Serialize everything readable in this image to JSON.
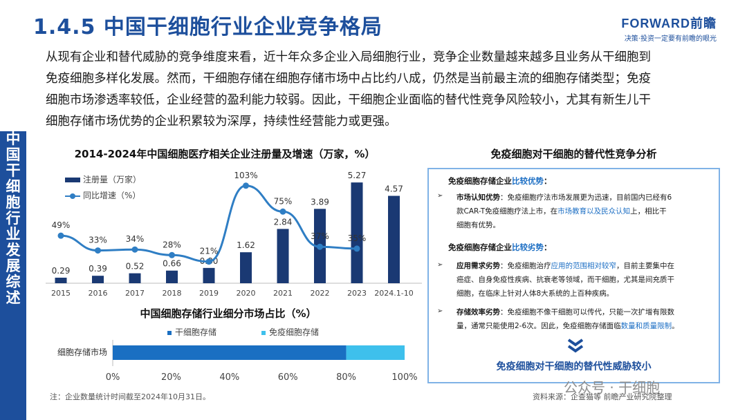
{
  "header": {
    "title": "1.4.5 中国干细胞行业企业竞争格局",
    "logo_main": "FORWARD前瞻",
    "logo_sub": "决策·投资一定要有前瞻的眼光"
  },
  "sidebar": {
    "chars": [
      "中",
      "国",
      "干",
      "细",
      "胞",
      "行",
      "业",
      "发",
      "展",
      "综",
      "述"
    ]
  },
  "intro": {
    "lines": [
      "从现有企业和替代威胁的竞争维度来看，近十年众多企业入局细胞行业，竞争企业数量越来越多且业务从干细胞到",
      "免疫细胞多样化发展。然而，干细胞存储在细胞存储市场中占比约八成，仍然是当前最主流的细胞存储类型；免疫",
      "细胞市场渗透率较低，企业经营的盈利能力较弱。因此，干细胞企业面临的替代性竞争风险较小，尤其有新生儿干",
      "细胞存储市场优势的企业积累较为深厚，持续性经营能力或更强。"
    ]
  },
  "chart_data": [
    {
      "type": "bar",
      "title": "2014-2024年中国细胞医疗相关企业注册量及增速（万家，%）",
      "categories": [
        "2015",
        "2016",
        "2017",
        "2018",
        "2019",
        "2020",
        "2021",
        "2022",
        "2023",
        "2024.1-10"
      ],
      "series": [
        {
          "name": "注册量（万家）",
          "type": "bar",
          "values": [
            0.29,
            0.39,
            0.52,
            0.66,
            0.8,
            1.62,
            2.84,
            3.89,
            5.27,
            4.57
          ],
          "color": "#1a3973"
        },
        {
          "name": "同比增速（%）",
          "type": "line",
          "values": [
            49,
            33,
            34,
            28,
            21,
            103,
            75,
            37,
            35,
            null
          ],
          "labels": [
            "49%",
            "33%",
            "34%",
            "28%",
            "21%",
            "103%",
            "75%",
            "37%",
            "35%",
            ""
          ],
          "color": "#2f7ec4"
        }
      ],
      "ylim": [
        0,
        6
      ]
    },
    {
      "type": "bar",
      "title": "中国细胞存储行业细分市场占比（%）",
      "categories": [
        "细胞存储市场"
      ],
      "series": [
        {
          "name": "干细胞存储",
          "values": [
            80
          ],
          "color": "#1a6fc2"
        },
        {
          "name": "免疫细胞存储",
          "values": [
            20
          ],
          "color": "#3ec0ec"
        }
      ],
      "x_ticks": [
        "0%",
        "20%",
        "40%",
        "60%",
        "80%",
        "100%"
      ],
      "xlim": [
        0,
        100
      ]
    }
  ],
  "panel": {
    "title": "免疫细胞对干细胞的替代性竞争分析",
    "adv_head_1": "免疫细胞存储企业",
    "adv_head_2": "比较优势",
    "adv_head_3": "：",
    "adv_items": [
      {
        "label": "市场认知优势",
        "text_a": "：免疫细胞疗法市场发展更为迅速，目前国内已经有6",
        "text_b": "款CAR-T免疫细胞疗法上市，在",
        "highlight": "市场教育以及民众认知",
        "text_c": "上，相比干",
        "text_d": "细胞有优势。"
      }
    ],
    "dis_head_1": "免疫细胞存储企业",
    "dis_head_2": "比较劣势",
    "dis_head_3": "：",
    "dis_items": [
      {
        "label": "应用需求劣势",
        "text_a": "：免疫细胞治疗",
        "highlight": "应用的范围相对较窄",
        "text_b": "，目前主要集中在",
        "text_c": "癌症、自身免疫性疾病、抗衰老等领域，而干细胞，尤其是间充质干",
        "text_d": "细胞，在临床上针对人体8大系统的上百种疾病。"
      },
      {
        "label": "存储效率劣势",
        "text_a": "：免疫细胞不像干细胞可以传代，只能一次扩增有限数",
        "text_b": "量，通常只能使用2-6次。因此，免疫细胞存储面临",
        "highlight": "数量和质量限制",
        "text_c": "。"
      }
    ],
    "footer": "免疫细胞对干细胞的替代性威胁较小"
  },
  "notes": {
    "note": "注：企业数量统计时间截至2024年10月31日。",
    "source": "资料来源：企查猫等 前瞻产业研究院整理",
    "wechat": "公众号 · 干细胞"
  }
}
